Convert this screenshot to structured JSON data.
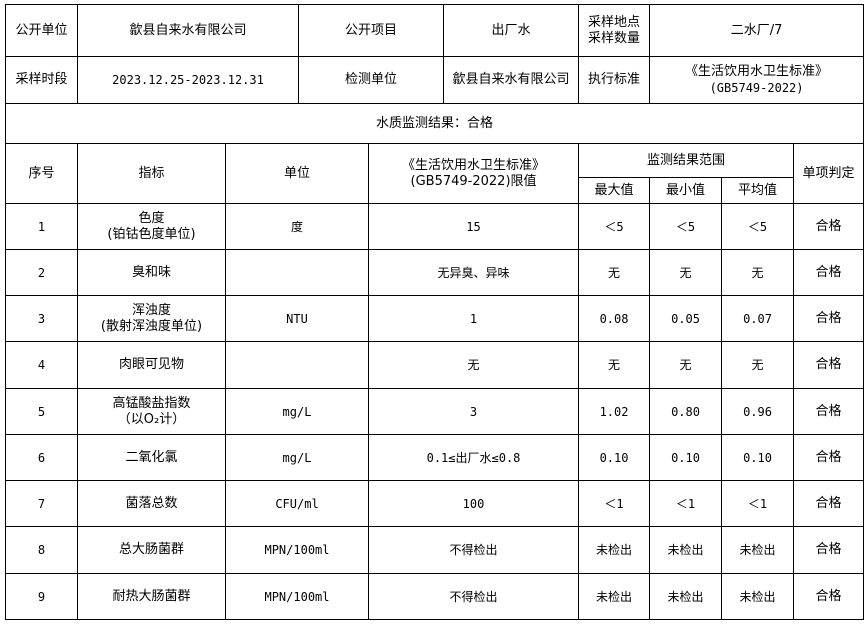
{
  "header": {
    "unit_label": "公开单位",
    "unit_value": "歙县自来水有限公司",
    "item_label": "公开项目",
    "item_value": "出厂水",
    "site_label": [
      "采样地点",
      "采样数量"
    ],
    "site_value": "二水厂/7",
    "period_label": "采样时段",
    "period_value": "2023.12.25-2023.12.31",
    "lab_label": "检测单位",
    "lab_value": "歙县自来水有限公司",
    "standard_label": "执行标准",
    "standard_value": [
      "《生活饮用水卫生标准》",
      "(GB5749-2022)"
    ]
  },
  "result_banner": "水质监测结果：合格",
  "columns": {
    "no": "序号",
    "indicator": "指标",
    "unit": "单位",
    "limit": [
      "《生活饮用水卫生标准》",
      "(GB5749-2022)限值"
    ],
    "range": "监测结果范围",
    "max": "最大值",
    "min": "最小值",
    "avg": "平均值",
    "verdict": "单项判定"
  },
  "rows": [
    {
      "no": "1",
      "indicator": [
        "色度",
        "(铂钴色度单位)"
      ],
      "unit": "度",
      "limit": "15",
      "max": "＜5",
      "min": "＜5",
      "avg": "＜5",
      "verdict": "合格"
    },
    {
      "no": "2",
      "indicator": [
        "臭和味"
      ],
      "unit": "",
      "limit": "无异臭、异味",
      "max": "无",
      "min": "无",
      "avg": "无",
      "verdict": "合格"
    },
    {
      "no": "3",
      "indicator": [
        "浑浊度",
        "(散射浑浊度单位)"
      ],
      "unit": "NTU",
      "limit": "1",
      "max": "0.08",
      "min": "0.05",
      "avg": "0.07",
      "verdict": "合格"
    },
    {
      "no": "4",
      "indicator": [
        "肉眼可见物"
      ],
      "unit": "",
      "limit": "无",
      "max": "无",
      "min": "无",
      "avg": "无",
      "verdict": "合格"
    },
    {
      "no": "5",
      "indicator": [
        "高锰酸盐指数",
        "（以O₂计）"
      ],
      "unit": "mg/L",
      "limit": "3",
      "max": "1.02",
      "min": "0.80",
      "avg": "0.96",
      "verdict": "合格"
    },
    {
      "no": "6",
      "indicator": [
        "二氧化氯"
      ],
      "unit": "mg/L",
      "limit": "0.1≤出厂水≤0.8",
      "max": "0.10",
      "min": "0.10",
      "avg": "0.10",
      "verdict": "合格"
    },
    {
      "no": "7",
      "indicator": [
        "菌落总数"
      ],
      "unit": "CFU/ml",
      "limit": "100",
      "max": "＜1",
      "min": "＜1",
      "avg": "＜1",
      "verdict": "合格"
    },
    {
      "no": "8",
      "indicator": [
        "总大肠菌群"
      ],
      "unit": "MPN/100ml",
      "limit": "不得检出",
      "max": "未检出",
      "min": "未检出",
      "avg": "未检出",
      "verdict": "合格"
    },
    {
      "no": "9",
      "indicator": [
        "耐热大肠菌群"
      ],
      "unit": "MPN/100ml",
      "limit": "不得检出",
      "max": "未检出",
      "min": "未检出",
      "avg": "未检出",
      "verdict": "合格"
    }
  ]
}
